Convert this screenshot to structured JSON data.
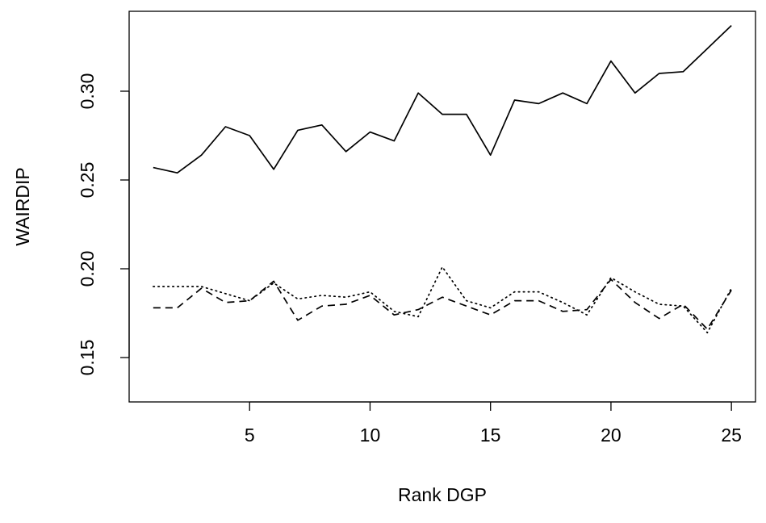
{
  "chart_data": {
    "type": "line",
    "xlabel": "Rank DGP",
    "ylabel": "WAIRDIP",
    "xlim": [
      0,
      26
    ],
    "ylim": [
      0.125,
      0.345
    ],
    "x_ticks": [
      5,
      10,
      15,
      20,
      25
    ],
    "y_ticks": [
      0.15,
      0.2,
      0.25,
      0.3
    ],
    "x_tick_labels": [
      "5",
      "10",
      "15",
      "20",
      "25"
    ],
    "y_tick_labels": [
      "0.15",
      "0.20",
      "0.25",
      "0.30"
    ],
    "grid": false,
    "legend": "none",
    "x": [
      1,
      2,
      3,
      4,
      5,
      6,
      7,
      8,
      9,
      10,
      11,
      12,
      13,
      14,
      15,
      16,
      17,
      18,
      19,
      20,
      21,
      22,
      23,
      24,
      25
    ],
    "series": [
      {
        "line_style": "solid",
        "values": [
          0.257,
          0.254,
          0.264,
          0.28,
          0.275,
          0.256,
          0.278,
          0.281,
          0.266,
          0.277,
          0.272,
          0.299,
          0.287,
          0.287,
          0.264,
          0.295,
          0.293,
          0.299,
          0.293,
          0.317,
          0.299,
          0.31,
          0.311,
          0.324,
          0.337
        ]
      },
      {
        "line_style": "dashed",
        "values": [
          0.178,
          0.178,
          0.189,
          0.181,
          0.182,
          0.193,
          0.171,
          0.179,
          0.18,
          0.185,
          0.174,
          0.177,
          0.184,
          0.179,
          0.174,
          0.182,
          0.182,
          0.176,
          0.177,
          0.194,
          0.181,
          0.172,
          0.18,
          0.166,
          0.188
        ]
      },
      {
        "line_style": "dotted",
        "values": [
          0.19,
          0.19,
          0.19,
          0.186,
          0.182,
          0.192,
          0.183,
          0.185,
          0.184,
          0.187,
          0.176,
          0.173,
          0.201,
          0.182,
          0.178,
          0.187,
          0.187,
          0.181,
          0.174,
          0.195,
          0.187,
          0.18,
          0.179,
          0.164,
          0.189
        ]
      }
    ]
  }
}
